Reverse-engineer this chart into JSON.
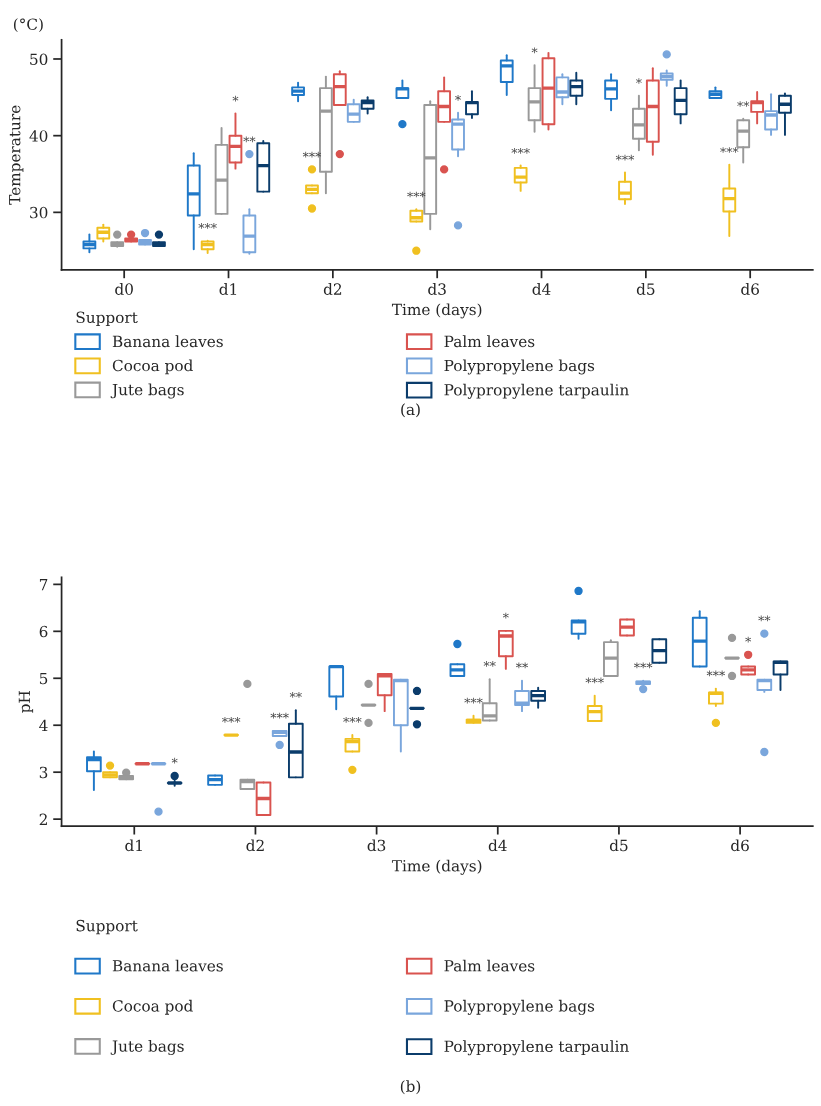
{
  "chart_data": [
    {
      "type": "box",
      "xlabel": "Time (days)",
      "ylabel": "Temperature",
      "legend_title": "Support",
      "legend": "bottom",
      "annotations": [
        "(°C)",
        "(a)"
      ],
      "categories": [
        "d0",
        "d1",
        "d2",
        "d3",
        "d4",
        "d5",
        "d6"
      ],
      "ylim": [
        22.5,
        52.5
      ],
      "yticks": [
        30,
        40,
        50
      ],
      "series": [
        {
          "name": "Banana leaves",
          "color": "#1f78c8",
          "boxes": [
            {
              "low": 24.8,
              "q1": 25.3,
              "median": 25.8,
              "q3": 26.2,
              "high": 27.1
            },
            {
              "low": 25.2,
              "q1": 29.6,
              "median": 32.4,
              "q3": 36.1,
              "high": 37.7
            },
            {
              "low": 44.5,
              "q1": 45.3,
              "median": 45.8,
              "q3": 46.3,
              "high": 46.9
            },
            {
              "low": 44.9,
              "q1": 44.9,
              "median": 46.1,
              "q3": 46.2,
              "high": 47.2,
              "outliers": [
                41.5
              ]
            },
            {
              "low": 45.3,
              "q1": 47.0,
              "median": 49.1,
              "q3": 49.8,
              "high": 50.5
            },
            {
              "low": 43.3,
              "q1": 44.8,
              "median": 46.1,
              "q3": 47.2,
              "high": 48.0
            },
            {
              "low": 44.9,
              "q1": 44.9,
              "median": 45.4,
              "q3": 45.8,
              "high": 46.3
            }
          ]
        },
        {
          "name": "Cocoa pod",
          "color": "#f0c020",
          "value_labels": [
            null,
            "***",
            "***",
            "***",
            "***",
            "***",
            "***"
          ],
          "boxes": [
            {
              "low": 26.2,
              "q1": 26.6,
              "median": 27.4,
              "q3": 28.0,
              "high": 28.4
            },
            {
              "low": 24.7,
              "q1": 25.2,
              "median": 25.8,
              "q3": 26.2,
              "high": 26.3
            },
            {
              "low": 32.5,
              "q1": 32.5,
              "median": 33.0,
              "q3": 33.5,
              "high": 33.5,
              "outliers": [
                35.6,
                30.5
              ]
            },
            {
              "low": 28.8,
              "q1": 28.8,
              "median": 29.3,
              "q3": 30.2,
              "high": 30.4,
              "outliers": [
                25.0
              ]
            },
            {
              "low": 32.8,
              "q1": 33.9,
              "median": 34.6,
              "q3": 35.8,
              "high": 36.1
            },
            {
              "low": 31.1,
              "q1": 31.7,
              "median": 32.5,
              "q3": 34.0,
              "high": 35.2
            },
            {
              "low": 26.9,
              "q1": 30.1,
              "median": 31.8,
              "q3": 33.1,
              "high": 36.2
            }
          ]
        },
        {
          "name": "Jute bags",
          "color": "#999999",
          "value_labels": [
            null,
            null,
            null,
            null,
            "*",
            "*",
            "**"
          ],
          "boxes": [
            {
              "low": 25.5,
              "q1": 25.6,
              "median": 25.9,
              "q3": 26.1,
              "high": 26.1,
              "outliers": [
                27.1
              ]
            },
            {
              "low": 29.8,
              "q1": 29.8,
              "median": 34.2,
              "q3": 38.8,
              "high": 41.0
            },
            {
              "low": 32.5,
              "q1": 35.3,
              "median": 43.2,
              "q3": 46.2,
              "high": 47.7
            },
            {
              "low": 27.8,
              "q1": 29.8,
              "median": 37.1,
              "q3": 44.0,
              "high": 44.5
            },
            {
              "low": 40.5,
              "q1": 42.0,
              "median": 44.4,
              "q3": 46.2,
              "high": 49.2
            },
            {
              "low": 38.1,
              "q1": 39.6,
              "median": 41.4,
              "q3": 43.5,
              "high": 45.2
            },
            {
              "low": 36.5,
              "q1": 38.5,
              "median": 40.6,
              "q3": 42.0,
              "high": 42.2
            }
          ]
        },
        {
          "name": "Palm leaves",
          "color": "#d9534f",
          "value_labels": [
            null,
            "*",
            null,
            null,
            null,
            null,
            null
          ],
          "boxes": [
            {
              "low": 26.2,
              "q1": 26.2,
              "median": 26.4,
              "q3": 26.6,
              "high": 26.6,
              "outliers": [
                27.1
              ]
            },
            {
              "low": 35.7,
              "q1": 36.5,
              "median": 38.6,
              "q3": 40.0,
              "high": 42.9
            },
            {
              "low": 44.0,
              "q1": 44.0,
              "median": 46.4,
              "q3": 48.0,
              "high": 48.4,
              "outliers": [
                37.6
              ]
            },
            {
              "low": 41.8,
              "q1": 41.8,
              "median": 43.8,
              "q3": 45.8,
              "high": 47.6,
              "outliers": [
                35.6
              ]
            },
            {
              "low": 40.8,
              "q1": 41.5,
              "median": 46.2,
              "q3": 50.1,
              "high": 50.8
            },
            {
              "low": 37.5,
              "q1": 39.2,
              "median": 43.8,
              "q3": 47.2,
              "high": 48.8
            },
            {
              "low": 41.6,
              "q1": 43.1,
              "median": 44.3,
              "q3": 44.5,
              "high": 45.7
            }
          ]
        },
        {
          "name": "Polypropylene bags",
          "color": "#7aa6dc",
          "value_labels": [
            null,
            "**",
            null,
            "*",
            null,
            null,
            null
          ],
          "boxes": [
            {
              "low": 25.8,
              "q1": 25.8,
              "median": 26.1,
              "q3": 26.4,
              "high": 26.4,
              "outliers": [
                27.3
              ]
            },
            {
              "low": 24.6,
              "q1": 24.8,
              "median": 26.9,
              "q3": 29.6,
              "high": 30.4,
              "outliers": [
                37.6
              ]
            },
            {
              "low": 41.8,
              "q1": 41.8,
              "median": 42.8,
              "q3": 44.1,
              "high": 44.7
            },
            {
              "low": 37.3,
              "q1": 38.2,
              "median": 41.5,
              "q3": 42.1,
              "high": 43.0,
              "outliers": [
                28.3
              ]
            },
            {
              "low": 44.1,
              "q1": 45.0,
              "median": 45.7,
              "q3": 47.6,
              "high": 48.0
            },
            {
              "low": 46.5,
              "q1": 47.3,
              "median": 47.7,
              "q3": 48.1,
              "high": 48.5,
              "outliers": [
                50.6
              ]
            },
            {
              "low": 40.1,
              "q1": 40.8,
              "median": 42.7,
              "q3": 43.2,
              "high": 45.4
            }
          ]
        },
        {
          "name": "Polypropylene tarpaulin",
          "color": "#0b3c6b",
          "boxes": [
            {
              "low": 25.6,
              "q1": 25.6,
              "median": 25.9,
              "q3": 26.1,
              "high": 26.1,
              "outliers": [
                27.1
              ]
            },
            {
              "low": 32.7,
              "q1": 32.7,
              "median": 36.1,
              "q3": 39.0,
              "high": 39.3
            },
            {
              "low": 42.9,
              "q1": 43.5,
              "median": 44.3,
              "q3": 44.6,
              "high": 45.0
            },
            {
              "low": 42.3,
              "q1": 42.8,
              "median": 44.3,
              "q3": 44.4,
              "high": 45.8
            },
            {
              "low": 44.1,
              "q1": 45.2,
              "median": 46.4,
              "q3": 47.2,
              "high": 48.2
            },
            {
              "low": 41.6,
              "q1": 42.8,
              "median": 44.6,
              "q3": 46.2,
              "high": 47.2
            },
            {
              "low": 40.1,
              "q1": 43.0,
              "median": 44.1,
              "q3": 45.2,
              "high": 45.5
            }
          ]
        }
      ]
    },
    {
      "type": "box",
      "xlabel": "Time (days)",
      "ylabel": "pH",
      "legend_title": "Support",
      "legend": "bottom",
      "annotations": [
        "(b)"
      ],
      "categories": [
        "d1",
        "d2",
        "d3",
        "d4",
        "d5",
        "d6"
      ],
      "ylim": [
        1.85,
        7.15
      ],
      "yticks": [
        2,
        3,
        4,
        5,
        6,
        7
      ],
      "series": [
        {
          "name": "Banana leaves",
          "color": "#1f78c8",
          "boxes": [
            {
              "low": 2.62,
              "q1": 3.02,
              "median": 3.27,
              "q3": 3.32,
              "high": 3.44
            },
            {
              "low": 2.73,
              "q1": 2.73,
              "median": 2.84,
              "q3": 2.93,
              "high": 2.93
            },
            {
              "low": 4.34,
              "q1": 4.61,
              "median": 5.25,
              "q3": 5.25,
              "high": 5.25
            },
            {
              "low": 5.05,
              "q1": 5.05,
              "median": 5.18,
              "q3": 5.3,
              "high": 5.3,
              "outliers": [
                5.73
              ]
            },
            {
              "low": 5.84,
              "q1": 5.95,
              "median": 6.2,
              "q3": 6.23,
              "high": 6.23,
              "outliers": [
                6.86
              ]
            },
            {
              "low": 5.25,
              "q1": 5.25,
              "median": 5.79,
              "q3": 6.29,
              "high": 6.43
            }
          ]
        },
        {
          "name": "Cocoa pod",
          "color": "#f0c020",
          "value_labels": [
            null,
            "***",
            "***",
            "***",
            "***",
            "***"
          ],
          "boxes": [
            {
              "low": 2.89,
              "q1": 2.89,
              "median": 2.94,
              "q3": 3.0,
              "high": 3.0,
              "outliers": [
                3.14
              ]
            },
            {
              "low": 3.79,
              "q1": 3.79,
              "median": 3.79,
              "q3": 3.79,
              "high": 3.79
            },
            {
              "low": 3.44,
              "q1": 3.44,
              "median": 3.65,
              "q3": 3.71,
              "high": 3.79,
              "outliers": [
                3.05
              ]
            },
            {
              "low": 4.05,
              "q1": 4.05,
              "median": 4.1,
              "q3": 4.12,
              "high": 4.2
            },
            {
              "low": 4.09,
              "q1": 4.09,
              "median": 4.29,
              "q3": 4.41,
              "high": 4.63
            },
            {
              "low": 4.41,
              "q1": 4.46,
              "median": 4.68,
              "q3": 4.7,
              "high": 4.78,
              "outliers": [
                4.05
              ]
            }
          ]
        },
        {
          "name": "Jute bags",
          "color": "#999999",
          "value_labels": [
            null,
            null,
            null,
            "**",
            null,
            null
          ],
          "boxes": [
            {
              "low": 2.85,
              "q1": 2.85,
              "median": 2.89,
              "q3": 2.92,
              "high": 2.92,
              "outliers": [
                2.99
              ]
            },
            {
              "low": 2.64,
              "q1": 2.64,
              "median": 2.8,
              "q3": 2.84,
              "high": 2.84,
              "outliers": [
                4.88
              ]
            },
            {
              "low": 4.43,
              "q1": 4.43,
              "median": 4.43,
              "q3": 4.43,
              "high": 4.43,
              "outliers": [
                4.88,
                4.05
              ]
            },
            {
              "low": 4.1,
              "q1": 4.1,
              "median": 4.2,
              "q3": 4.47,
              "high": 4.98
            },
            {
              "low": 5.05,
              "q1": 5.05,
              "median": 5.43,
              "q3": 5.77,
              "high": 5.81
            },
            {
              "low": 5.43,
              "q1": 5.43,
              "median": 5.43,
              "q3": 5.43,
              "high": 5.43,
              "outliers": [
                5.86,
                5.05
              ]
            }
          ]
        },
        {
          "name": "Palm leaves",
          "color": "#d9534f",
          "value_labels": [
            null,
            null,
            null,
            "*",
            null,
            "*"
          ],
          "boxes": [
            {
              "low": 3.18,
              "q1": 3.18,
              "median": 3.18,
              "q3": 3.18,
              "high": 3.18
            },
            {
              "low": 2.09,
              "q1": 2.09,
              "median": 2.44,
              "q3": 2.78,
              "high": 2.78
            },
            {
              "low": 4.3,
              "q1": 4.64,
              "median": 5.05,
              "q3": 5.09,
              "high": 5.09
            },
            {
              "low": 5.2,
              "q1": 5.47,
              "median": 5.9,
              "q3": 6.01,
              "high": 6.01
            },
            {
              "low": 5.91,
              "q1": 5.91,
              "median": 6.09,
              "q3": 6.25,
              "high": 6.25
            },
            {
              "low": 5.08,
              "q1": 5.08,
              "median": 5.18,
              "q3": 5.25,
              "high": 5.25,
              "outliers": [
                5.5
              ]
            }
          ]
        },
        {
          "name": "Polypropylene bags",
          "color": "#7aa6dc",
          "value_labels": [
            null,
            "***",
            null,
            "**",
            "***",
            "**"
          ],
          "boxes": [
            {
              "low": 3.18,
              "q1": 3.18,
              "median": 3.18,
              "q3": 3.18,
              "high": 3.18,
              "outliers": [
                2.16
              ]
            },
            {
              "low": 3.77,
              "q1": 3.77,
              "median": 3.85,
              "q3": 3.88,
              "high": 3.88,
              "outliers": [
                3.58
              ]
            },
            {
              "low": 3.44,
              "q1": 4.0,
              "median": 4.95,
              "q3": 4.97,
              "high": 4.97
            },
            {
              "low": 4.3,
              "q1": 4.43,
              "median": 4.47,
              "q3": 4.73,
              "high": 4.95
            },
            {
              "low": 4.88,
              "q1": 4.88,
              "median": 4.91,
              "q3": 4.93,
              "high": 4.95,
              "outliers": [
                4.77
              ]
            },
            {
              "low": 4.71,
              "q1": 4.75,
              "median": 4.95,
              "q3": 4.97,
              "high": 4.97,
              "outliers": [
                5.95,
                3.43
              ]
            }
          ]
        },
        {
          "name": "Polypropylene tarpaulin",
          "color": "#0b3c6b",
          "value_labels": [
            "*",
            "**",
            null,
            null,
            null,
            null
          ],
          "boxes": [
            {
              "low": 2.71,
              "q1": 2.77,
              "median": 2.77,
              "q3": 2.77,
              "high": 2.82,
              "outliers": [
                2.92
              ]
            },
            {
              "low": 2.89,
              "q1": 2.89,
              "median": 3.43,
              "q3": 4.03,
              "high": 4.32
            },
            {
              "low": 4.36,
              "q1": 4.36,
              "median": 4.36,
              "q3": 4.36,
              "high": 4.36,
              "outliers": [
                4.73,
                4.02
              ]
            },
            {
              "low": 4.37,
              "q1": 4.52,
              "median": 4.63,
              "q3": 4.73,
              "high": 4.8
            },
            {
              "low": 5.33,
              "q1": 5.33,
              "median": 5.59,
              "q3": 5.83,
              "high": 5.83
            },
            {
              "low": 4.75,
              "q1": 5.08,
              "median": 5.34,
              "q3": 5.36,
              "high": 5.36
            }
          ]
        }
      ]
    }
  ]
}
